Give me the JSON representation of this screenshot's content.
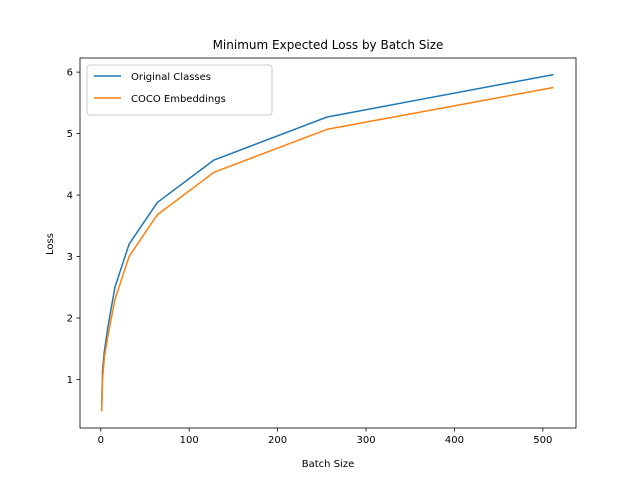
{
  "chart_data": {
    "type": "line",
    "title": "Minimum Expected Loss by Batch Size",
    "xlabel": "Batch Size",
    "ylabel": "Loss",
    "xlim": [
      -23.5,
      537.5
    ],
    "ylim": [
      0.21,
      6.23
    ],
    "x_ticks": [
      0,
      100,
      200,
      300,
      400,
      500
    ],
    "y_ticks": [
      1,
      2,
      3,
      4,
      5,
      6
    ],
    "grid": false,
    "legend_position": "upper-left",
    "x": [
      1,
      2,
      4,
      8,
      16,
      32,
      64,
      128,
      256,
      512
    ],
    "series": [
      {
        "name": "Original Classes",
        "color": "#1f77b4",
        "values": [
          0.56,
          1.15,
          1.45,
          1.85,
          2.5,
          3.2,
          3.88,
          4.57,
          5.27,
          5.96
        ]
      },
      {
        "name": "COCO Embeddings",
        "color": "#ff7f0e",
        "values": [
          0.48,
          1.0,
          1.35,
          1.7,
          2.3,
          3.0,
          3.68,
          4.37,
          5.07,
          5.75
        ]
      }
    ]
  }
}
